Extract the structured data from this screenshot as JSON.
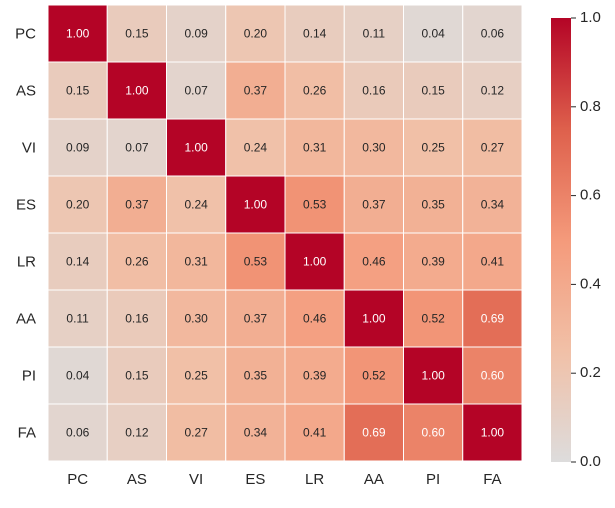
{
  "chart_data": {
    "type": "heatmap",
    "x_categories": [
      "PC",
      "AS",
      "VI",
      "ES",
      "LR",
      "AA",
      "PI",
      "FA"
    ],
    "y_categories": [
      "PC",
      "AS",
      "VI",
      "ES",
      "LR",
      "AA",
      "PI",
      "FA"
    ],
    "values": [
      [
        1.0,
        0.15,
        0.09,
        0.2,
        0.14,
        0.11,
        0.04,
        0.06
      ],
      [
        0.15,
        1.0,
        0.07,
        0.37,
        0.26,
        0.16,
        0.15,
        0.12
      ],
      [
        0.09,
        0.07,
        1.0,
        0.24,
        0.31,
        0.3,
        0.25,
        0.27
      ],
      [
        0.2,
        0.37,
        0.24,
        1.0,
        0.53,
        0.37,
        0.35,
        0.34
      ],
      [
        0.14,
        0.26,
        0.31,
        0.53,
        1.0,
        0.46,
        0.39,
        0.41
      ],
      [
        0.11,
        0.16,
        0.3,
        0.37,
        0.46,
        1.0,
        0.52,
        0.69
      ],
      [
        0.04,
        0.15,
        0.25,
        0.35,
        0.39,
        0.52,
        1.0,
        0.6
      ],
      [
        0.06,
        0.12,
        0.27,
        0.34,
        0.41,
        0.69,
        0.6,
        1.0
      ]
    ],
    "value_labels": [
      [
        "1.00",
        "0.15",
        "0.09",
        "0.20",
        "0.14",
        "0.11",
        "0.04",
        "0.06"
      ],
      [
        "0.15",
        "1.00",
        "0.07",
        "0.37",
        "0.26",
        "0.16",
        "0.15",
        "0.12"
      ],
      [
        "0.09",
        "0.07",
        "1.00",
        "0.24",
        "0.31",
        "0.30",
        "0.25",
        "0.27"
      ],
      [
        "0.20",
        "0.37",
        "0.24",
        "1.00",
        "0.53",
        "0.37",
        "0.35",
        "0.34"
      ],
      [
        "0.14",
        "0.26",
        "0.31",
        "0.53",
        "1.00",
        "0.46",
        "0.39",
        "0.41"
      ],
      [
        "0.11",
        "0.16",
        "0.30",
        "0.37",
        "0.46",
        "1.00",
        "0.52",
        "0.69"
      ],
      [
        "0.04",
        "0.15",
        "0.25",
        "0.35",
        "0.39",
        "0.52",
        "1.00",
        "0.60"
      ],
      [
        "0.06",
        "0.12",
        "0.27",
        "0.34",
        "0.41",
        "0.69",
        "0.60",
        "1.00"
      ]
    ],
    "zlim": [
      0,
      1
    ],
    "zticks": [
      {
        "value": 0,
        "label": "0.0"
      },
      0.2,
      0.4,
      0.6,
      0.8,
      {
        "value": 1,
        "label": "1.0"
      }
    ],
    "colorscale": [
      "#dddcdc",
      "#f1c0a7",
      "#f49a7b",
      "#de604c",
      "#b40426"
    ]
  }
}
